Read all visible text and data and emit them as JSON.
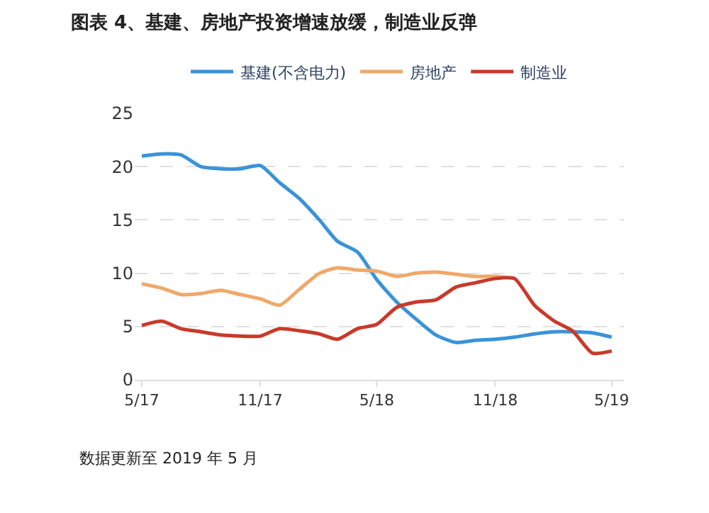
{
  "chart_data": {
    "type": "line",
    "title": "图表 4、基建、房地产投资增速放缓，制造业反弹",
    "x": [
      "2017-05",
      "2017-06",
      "2017-07",
      "2017-08",
      "2017-09",
      "2017-10",
      "2017-11",
      "2017-12",
      "2018-01",
      "2018-02",
      "2018-03",
      "2018-04",
      "2018-05",
      "2018-06",
      "2018-07",
      "2018-08",
      "2018-09",
      "2018-10",
      "2018-11",
      "2018-12",
      "2019-01",
      "2019-02",
      "2019-03",
      "2019-04",
      "2019-05"
    ],
    "series": [
      {
        "name": "基建(不含电力)",
        "color": "#3a93d8",
        "values": [
          21.0,
          21.2,
          21.1,
          20.0,
          19.8,
          19.8,
          20.1,
          18.5,
          17.0,
          15.0,
          13.0,
          12.0,
          9.4,
          7.3,
          5.7,
          4.2,
          3.5,
          3.7,
          3.8,
          4.0,
          4.3,
          4.5,
          4.5,
          4.4,
          4.0
        ]
      },
      {
        "name": "房地产",
        "color": "#f0a868",
        "values": [
          9.0,
          8.6,
          8.0,
          8.1,
          8.4,
          8.0,
          7.6,
          7.0,
          8.5,
          10.0,
          10.5,
          10.3,
          10.2,
          9.7,
          10.0,
          10.1,
          9.9,
          9.7,
          9.7,
          9.5,
          null,
          null,
          null,
          null,
          null
        ]
      },
      {
        "name": "制造业",
        "color": "#c83a2a",
        "values": [
          5.1,
          5.5,
          4.8,
          4.5,
          4.2,
          4.1,
          4.1,
          4.8,
          4.6,
          4.3,
          3.8,
          4.8,
          5.2,
          6.8,
          7.3,
          7.5,
          8.7,
          9.1,
          9.5,
          9.5,
          7.0,
          5.5,
          4.6,
          2.5,
          2.7
        ]
      }
    ],
    "xlim": [
      "2017-04-20",
      "2019-05-20"
    ],
    "xticks": [
      {
        "value": "2017-05",
        "label": "5/17"
      },
      {
        "value": "2017-11",
        "label": "11/17"
      },
      {
        "value": "2018-05",
        "label": "5/18"
      },
      {
        "value": "2018-11",
        "label": "11/18"
      },
      {
        "value": "2019-05",
        "label": "5/19"
      }
    ],
    "ylim": [
      0,
      25
    ],
    "yticks": [
      0,
      5,
      10,
      15,
      20,
      25
    ],
    "grid": "y",
    "legend": "top",
    "marker": "none",
    "line_style": "solid",
    "annotations": [
      "数据更新至 2019 年 5 月"
    ]
  }
}
